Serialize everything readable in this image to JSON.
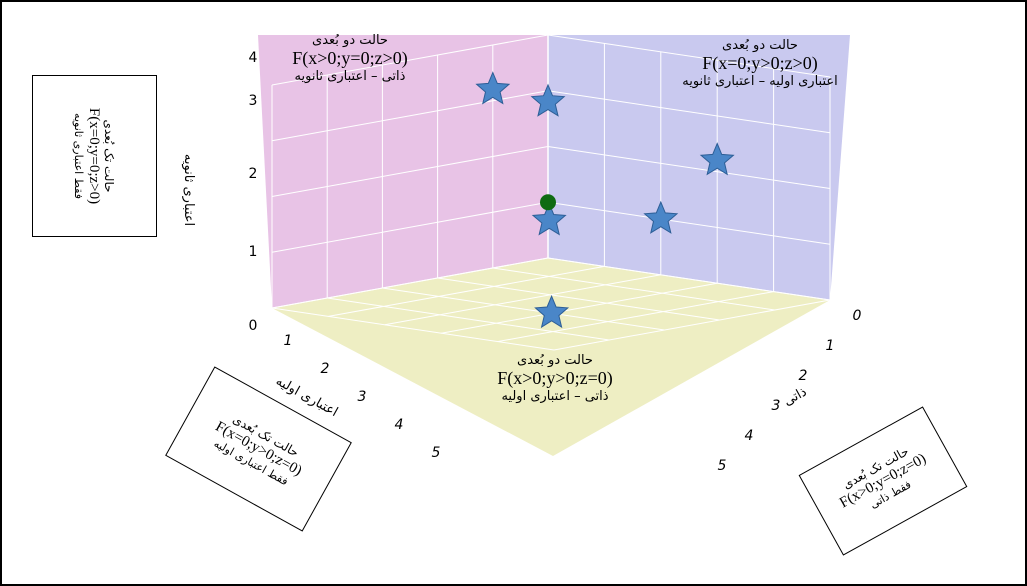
{
  "chart_data": {
    "type": "scatter3d",
    "axes": {
      "x": {
        "label": "ذاتی",
        "ticks": [
          "0",
          "1",
          "2",
          "3",
          "4",
          "5"
        ],
        "range": [
          0,
          5
        ]
      },
      "y": {
        "label": "اعتباری اولیه",
        "ticks": [
          "1",
          "2",
          "3",
          "4",
          "5"
        ],
        "range": [
          0,
          5
        ]
      },
      "z": {
        "label": "اعتباری ثانویه",
        "ticks": [
          "0",
          "1",
          "2",
          "3",
          "4"
        ],
        "range": [
          0,
          4
        ]
      }
    },
    "points": [
      {
        "marker": "star",
        "x": 0,
        "y": 1,
        "z": 3.2
      },
      {
        "marker": "star",
        "x": 1,
        "y": 1,
        "z": 1
      },
      {
        "marker": "star",
        "x": 0,
        "y": 0,
        "z": 2.8
      },
      {
        "marker": "star",
        "x": 2,
        "y": 0,
        "z": 1
      },
      {
        "marker": "star",
        "x": 3,
        "y": 0,
        "z": 2.2
      },
      {
        "marker": "star",
        "x": 3,
        "y": 3,
        "z": 0
      },
      {
        "marker": "circle",
        "x": 0,
        "y": 0,
        "z": 1
      }
    ],
    "colors": {
      "star": "#4a86c8",
      "circle": "#0f6b12",
      "wall_left": "#e8c3e6",
      "wall_right": "#c9c9ef",
      "floor": "#eeeec3"
    },
    "annotations": {
      "wall_left": {
        "title": "حالت دو بُعدی",
        "formula": "F(x>0;y=0;z>0)",
        "desc": "ذاتی – اعتباری ثانویه"
      },
      "wall_right": {
        "title": "حالت دو بُعدی",
        "formula": "F(x=0;y>0;z>0)",
        "desc": "اعتباری اولیه – اعتباری ثانویه"
      },
      "floor": {
        "title": "حالت دو بُعدی",
        "formula": "F(x>0;y>0;z=0)",
        "desc": "ذاتی – اعتباری اولیه"
      }
    },
    "boxes": {
      "left": {
        "title": "حالت تک بُعدی",
        "formula": "F(x=0;y=0;z>0)",
        "desc": "فقط اعتباری ثانویه"
      },
      "bottom_left": {
        "title": "حالت تک بُعدی",
        "formula": "F(x=0;y>0;z=0)",
        "desc": "فقط اعتباری اولیه"
      },
      "bottom_right": {
        "title": "حالت تک بُعدی",
        "formula": "F(x>0;y=0;z=0)",
        "desc": "فقط ذاتی"
      }
    }
  }
}
